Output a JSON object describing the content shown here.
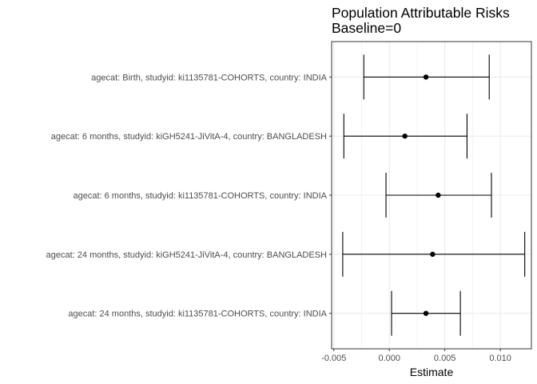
{
  "chart_data": {
    "type": "forest",
    "title": "Population Attributable Risks",
    "subtitle": "Baseline=0",
    "xlabel": "Estimate",
    "ylabel": "",
    "xlim": [
      -0.0052,
      0.0128
    ],
    "x_ticks": [
      -0.005,
      0.0,
      0.005,
      0.01
    ],
    "x_tick_labels": [
      "-0.005",
      "0.000",
      "0.005",
      "0.010"
    ],
    "grid": true,
    "legend": "none",
    "rows": [
      {
        "label": "agecat: Birth, studyid: ki1135781-COHORTS, country: INDIA",
        "estimate": 0.0033,
        "lower": -0.0023,
        "upper": 0.009
      },
      {
        "label": "agecat: 6 months, studyid: kiGH5241-JiVitA-4, country: BANGLADESH",
        "estimate": 0.0014,
        "lower": -0.0041,
        "upper": 0.007
      },
      {
        "label": "agecat: 6 months, studyid: ki1135781-COHORTS, country: INDIA",
        "estimate": 0.0044,
        "lower": -0.0003,
        "upper": 0.0092
      },
      {
        "label": "agecat: 24 months, studyid: kiGH5241-JiVitA-4, country: BANGLADESH",
        "estimate": 0.0039,
        "lower": -0.0042,
        "upper": 0.0122
      },
      {
        "label": "agecat: 24 months, studyid: ki1135781-COHORTS, country: INDIA",
        "estimate": 0.0033,
        "lower": 0.0002,
        "upper": 0.0064
      }
    ],
    "colors": {
      "point": "#000000",
      "errorbar": "#000000",
      "grid": "#ebebeb",
      "panel_border": "#333333"
    }
  }
}
